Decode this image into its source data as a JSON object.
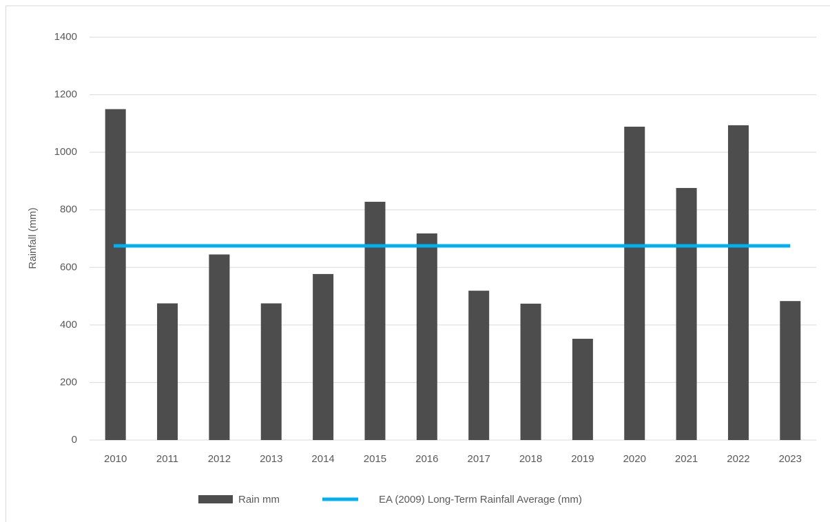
{
  "chart_data": {
    "type": "bar",
    "y_label": "Rainfall (mm)",
    "categories": [
      "2010",
      "2011",
      "2012",
      "2013",
      "2014",
      "2015",
      "2016",
      "2017",
      "2018",
      "2019",
      "2020",
      "2021",
      "2022",
      "2023"
    ],
    "series": [
      {
        "name": "Rain mm",
        "type": "bar",
        "color": "#4d4d4d",
        "values": [
          1150,
          475,
          645,
          475,
          577,
          828,
          718,
          519,
          474,
          352,
          1089,
          876,
          1094,
          483
        ]
      },
      {
        "name": "EA (2009) Long-Term Rainfall Average (mm)",
        "type": "line",
        "color": "#00b0f0",
        "values": [
          675,
          675,
          675,
          675,
          675,
          675,
          675,
          675,
          675,
          675,
          675,
          675,
          675,
          675
        ]
      }
    ],
    "ylim": [
      0,
      1400
    ],
    "yticks": [
      0,
      200,
      400,
      600,
      800,
      1000,
      1200,
      1400
    ],
    "grid": true,
    "legend": "bottom"
  }
}
